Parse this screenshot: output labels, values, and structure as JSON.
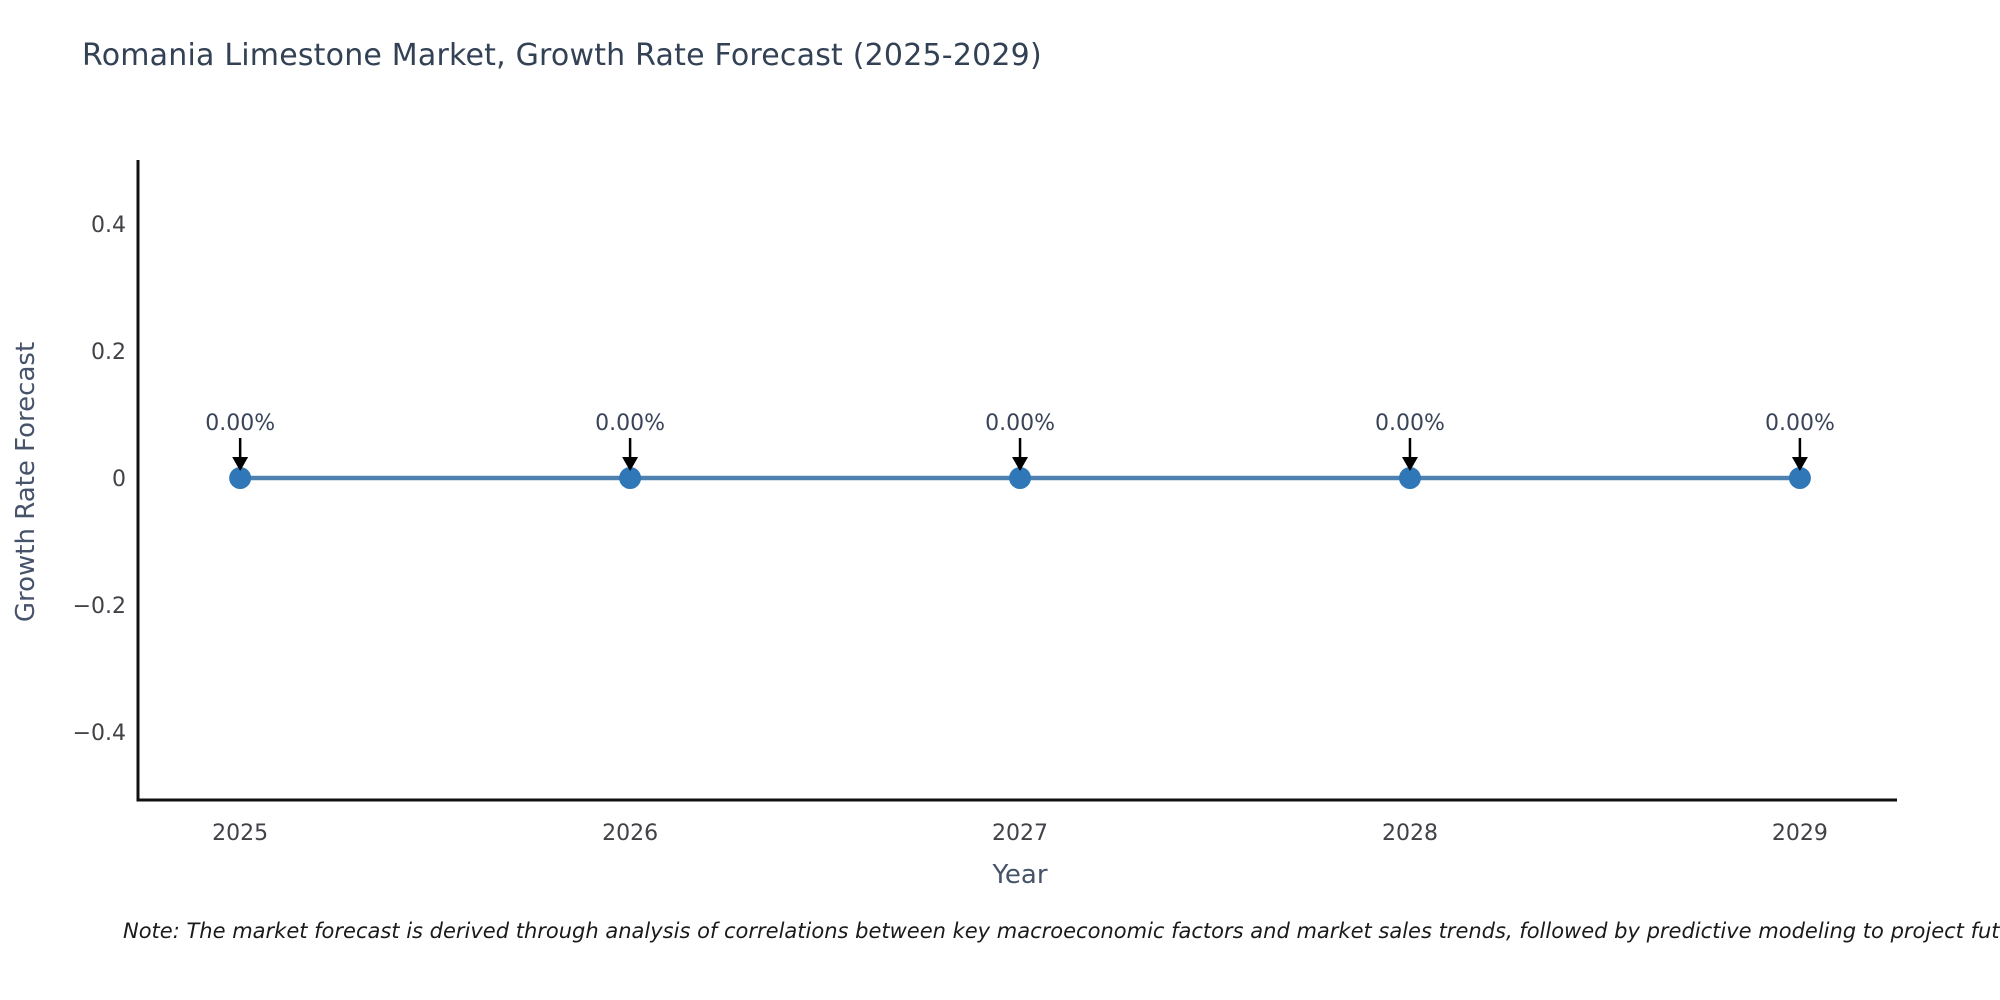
{
  "page": {
    "background": "#ffffff"
  },
  "chart_data": {
    "type": "line",
    "title": "Romania Limestone Market, Growth Rate Forecast (2025-2029)",
    "xlabel": "Year",
    "ylabel": "Growth Rate Forecast",
    "x": [
      2025,
      2026,
      2027,
      2028,
      2029
    ],
    "values": [
      0,
      0,
      0,
      0,
      0
    ],
    "point_labels": [
      "0.00%",
      "0.00%",
      "0.00%",
      "0.00%",
      "0.00%"
    ],
    "xtick_labels": [
      "2025",
      "2026",
      "2027",
      "2028",
      "2029"
    ],
    "ytick_values": [
      0.4,
      0.2,
      0,
      -0.2,
      -0.4
    ],
    "ytick_labels": [
      "0.4",
      "0.2",
      "0",
      "−0.2",
      "−0.4"
    ],
    "xlim": [
      2024.738,
      2029.249
    ],
    "ylim": [
      -0.507,
      0.5008
    ],
    "grid": false,
    "legend": null,
    "colors": {
      "line": "#4e81b0",
      "marker": "#2f77b6",
      "axis": "#111111",
      "tick_text": "#414147",
      "annotation_text": "#3a4458",
      "arrow": "#000000"
    }
  },
  "note": {
    "text": "Note: The market forecast is derived through analysis of correlations between key macroeconomic factors and market sales trends, followed by predictive modeling to project future sa"
  }
}
